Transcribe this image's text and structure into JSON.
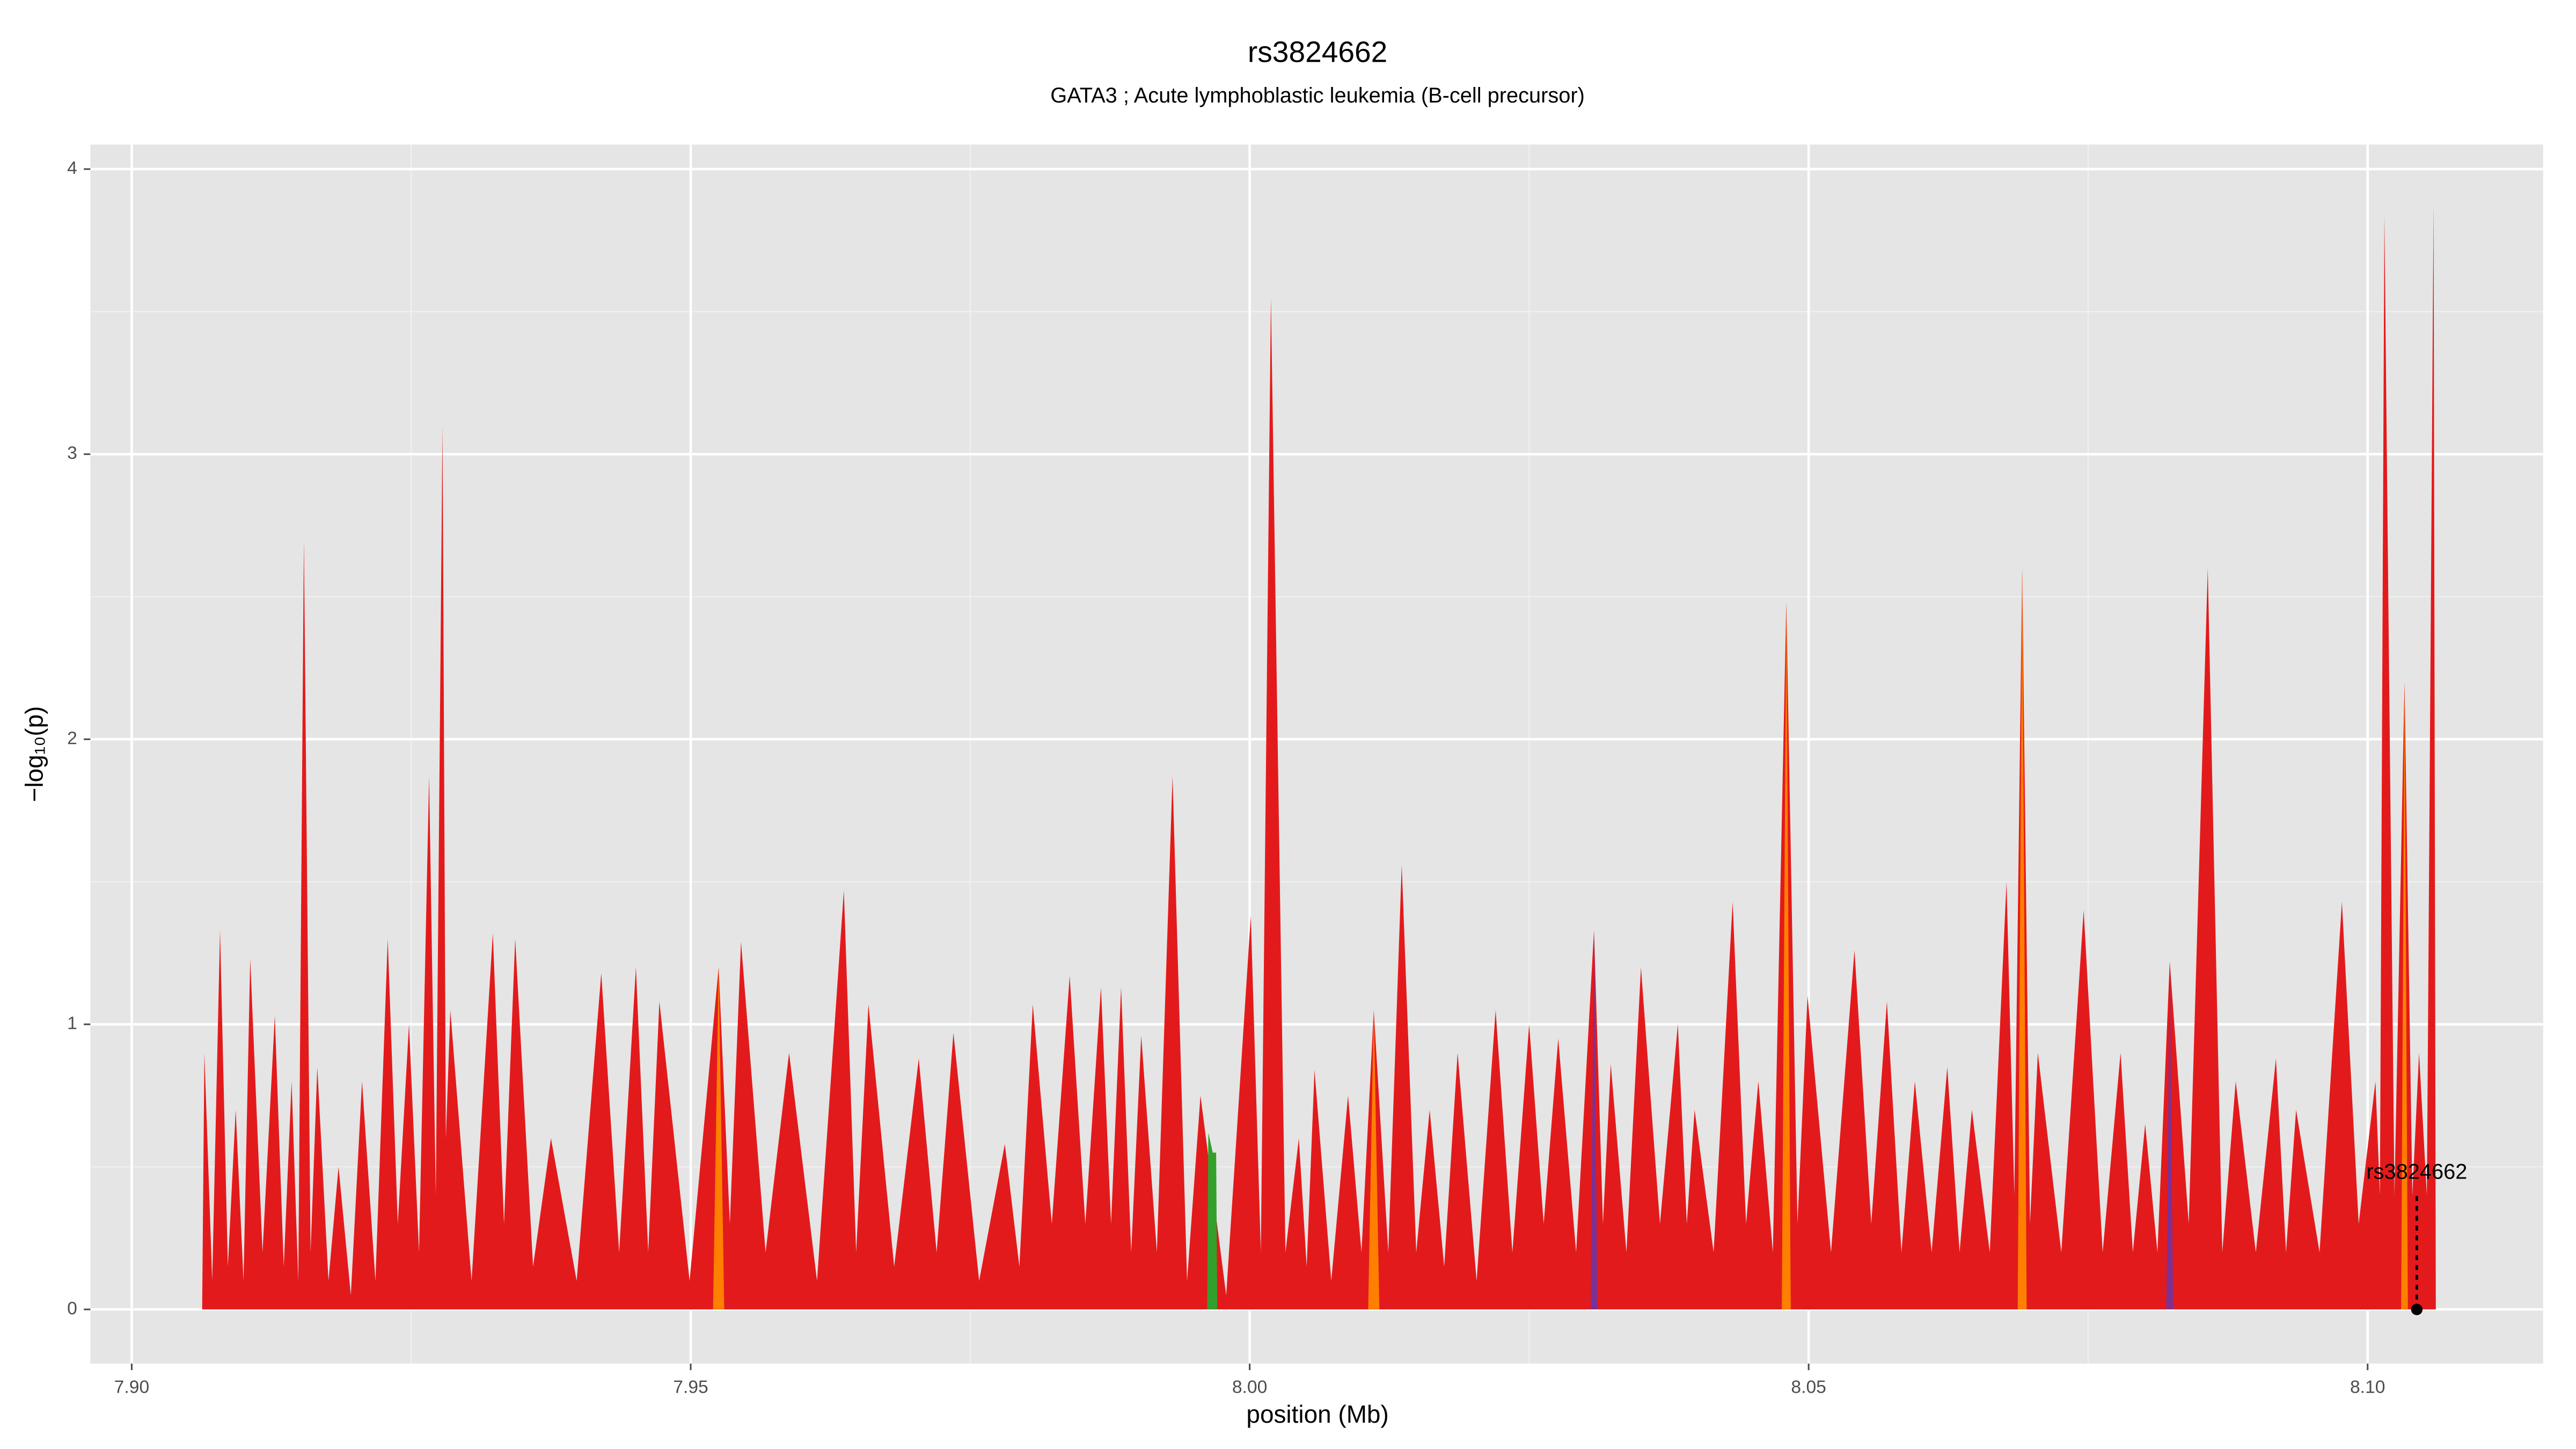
{
  "chart_data": {
    "type": "area",
    "title": "rs3824662",
    "subtitle": "GATA3 ; Acute lymphoblastic leukemia (B-cell precursor)",
    "x_label": "position (Mb)",
    "y_label": "−log₁₀(p)",
    "xlim": [
      7.8963,
      8.1157
    ],
    "ylim": [
      -0.19,
      4.086
    ],
    "xticks": [
      {
        "value": 7.9,
        "label": "7.90"
      },
      7.95,
      {
        "value": 8.0,
        "label": "8.00"
      },
      8.05,
      {
        "value": 8.1,
        "label": "8.10"
      }
    ],
    "yticks": [
      0,
      1,
      2,
      3,
      4
    ],
    "grid": true,
    "series": [
      {
        "color": "#e31a1c",
        "x": [
          7.9063,
          7.9065,
          7.9072,
          7.9079,
          7.9086,
          7.9093,
          7.91,
          7.9106,
          7.9117,
          7.9128,
          7.9136,
          7.9143,
          7.9149,
          7.9154,
          7.916,
          7.9166,
          7.9176,
          7.9185,
          7.9196,
          7.9206,
          7.9218,
          7.9229,
          7.9238,
          7.9248,
          7.9257,
          7.9266,
          7.9272,
          7.9278,
          7.9281,
          7.9285,
          7.9304,
          7.9323,
          7.9333,
          7.9343,
          7.9359,
          7.9375,
          7.9398,
          7.942,
          7.9436,
          7.9451,
          7.9462,
          7.9472,
          7.9499,
          7.9525,
          7.9535,
          7.9545,
          7.9567,
          7.9588,
          7.9613,
          7.9637,
          7.9648,
          7.9659,
          7.9682,
          7.9704,
          7.972,
          7.9735,
          7.9758,
          7.9781,
          7.9794,
          7.9806,
          7.9823,
          7.9839,
          7.9853,
          7.9867,
          7.9876,
          7.9885,
          7.9894,
          7.9903,
          7.9917,
          7.9931,
          7.9944,
          7.9956,
          7.9979,
          8.0001,
          8.001,
          8.0019,
          8.0032,
          8.0044,
          8.0051,
          8.0058,
          8.0073,
          8.0088,
          8.01,
          8.0111,
          8.0124,
          8.0136,
          8.0149,
          8.0161,
          8.0174,
          8.0186,
          8.0203,
          8.022,
          8.0235,
          8.025,
          8.0263,
          8.0276,
          8.0292,
          8.0308,
          8.0316,
          8.0323,
          8.0337,
          8.035,
          8.0367,
          8.0383,
          8.0391,
          8.0398,
          8.0415,
          8.0432,
          8.0444,
          8.0455,
          8.0468,
          8.048,
          8.049,
          8.0499,
          8.052,
          8.0541,
          8.0556,
          8.057,
          8.0583,
          8.0595,
          8.061,
          8.0624,
          8.0635,
          8.0646,
          8.0662,
          8.0677,
          8.0684,
          8.0691,
          8.0698,
          8.0705,
          8.0726,
          8.0746,
          8.0763,
          8.0779,
          8.079,
          8.0801,
          8.0812,
          8.0823,
          8.084,
          8.0857,
          8.087,
          8.0882,
          8.09,
          8.0918,
          8.0927,
          8.0936,
          8.0957,
          8.0977,
          8.0992,
          8.1007,
          8.1011,
          8.1015,
          8.1024,
          8.1033,
          8.104,
          8.1046,
          8.1053,
          8.1059,
          8.1061
        ],
        "values": [
          0,
          0.9,
          0.1,
          1.33,
          0.15,
          0.7,
          0.1,
          1.23,
          0.2,
          1.03,
          0.15,
          0.8,
          0.1,
          2.7,
          0.2,
          0.85,
          0.1,
          0.5,
          0.05,
          0.8,
          0.1,
          1.3,
          0.3,
          1.0,
          0.2,
          1.87,
          0.4,
          3.1,
          0.6,
          1.05,
          0.1,
          1.32,
          0.3,
          1.3,
          0.15,
          0.6,
          0.1,
          1.18,
          0.2,
          1.2,
          0.2,
          1.08,
          0.1,
          1.2,
          0.3,
          1.29,
          0.2,
          0.9,
          0.1,
          1.47,
          0.2,
          1.07,
          0.15,
          0.88,
          0.2,
          0.97,
          0.1,
          0.58,
          0.15,
          1.07,
          0.3,
          1.17,
          0.3,
          1.13,
          0.3,
          1.13,
          0.2,
          0.96,
          0.2,
          1.87,
          0.1,
          0.75,
          0.05,
          1.38,
          0.2,
          3.55,
          0.2,
          0.6,
          0.15,
          0.84,
          0.1,
          0.75,
          0.2,
          1.05,
          0.2,
          1.56,
          0.2,
          0.7,
          0.15,
          0.9,
          0.1,
          1.05,
          0.2,
          1.0,
          0.3,
          0.95,
          0.2,
          1.33,
          0.3,
          0.86,
          0.2,
          1.2,
          0.3,
          1.0,
          0.3,
          0.7,
          0.2,
          1.43,
          0.3,
          0.8,
          0.2,
          2.48,
          0.3,
          1.1,
          0.2,
          1.26,
          0.3,
          1.08,
          0.2,
          0.8,
          0.2,
          0.85,
          0.2,
          0.7,
          0.2,
          1.5,
          0.4,
          2.6,
          0.3,
          0.9,
          0.2,
          1.4,
          0.2,
          0.9,
          0.2,
          0.65,
          0.2,
          1.22,
          0.3,
          2.6,
          0.2,
          0.8,
          0.2,
          0.88,
          0.2,
          0.7,
          0.2,
          1.43,
          0.3,
          0.8,
          0.4,
          3.84,
          0.4,
          2.2,
          0.4,
          0.9,
          0.4,
          3.88,
          0
        ]
      },
      {
        "color": "#ff7f00",
        "x": [
          7.952,
          7.9525,
          7.953,
          8.0106,
          8.0111,
          8.0116,
          8.0476,
          8.048,
          8.0484,
          8.0687,
          8.0691,
          8.0695,
          8.103,
          8.1033,
          8.1036
        ],
        "values": [
          0,
          1.2,
          0,
          0,
          1.05,
          0,
          0,
          2.48,
          0,
          0,
          2.6,
          0,
          0,
          2.2,
          0
        ]
      },
      {
        "color": "#7b3294",
        "x": [
          8.0305,
          8.0308,
          8.0311,
          8.082,
          8.0823,
          8.0826
        ],
        "values": [
          0,
          1.33,
          0,
          0,
          1.22,
          0
        ]
      },
      {
        "color": "#33a02c",
        "x": [
          7.9962,
          7.9963,
          7.9967,
          7.997,
          7.9971
        ],
        "values": [
          0,
          0.62,
          0.55,
          0.55,
          0
        ]
      }
    ],
    "annotations": [
      {
        "text": "rs3824662",
        "x": 8.1044,
        "y": 0
      }
    ]
  }
}
